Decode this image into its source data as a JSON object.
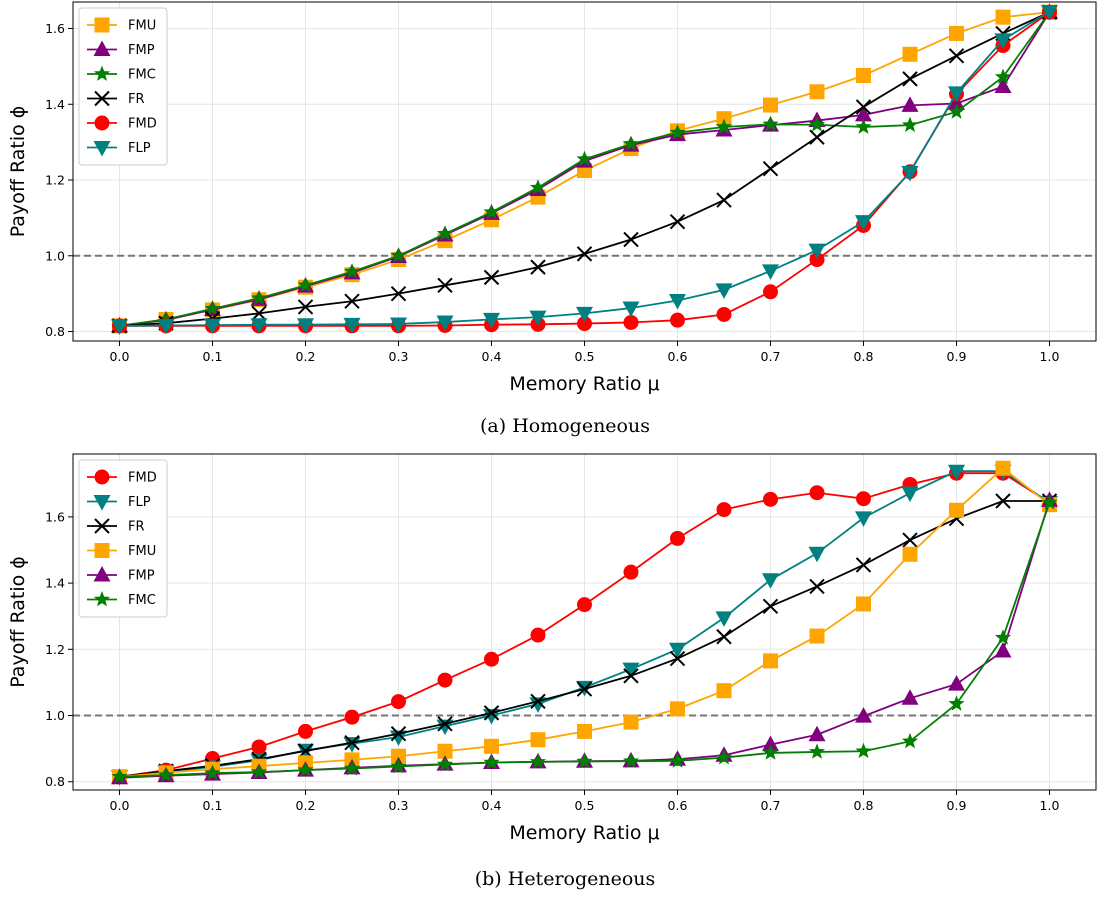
{
  "figure": {
    "captions": [
      "(a) Homogeneous",
      "(b) Heterogeneous"
    ]
  },
  "styles": {
    "FMU": {
      "color": "#FFA500",
      "marker": "square"
    },
    "FMP": {
      "color": "#800080",
      "marker": "triangle-up"
    },
    "FMC": {
      "color": "#008000",
      "marker": "star"
    },
    "FR": {
      "color": "#000000",
      "marker": "x"
    },
    "FMD": {
      "color": "#FF0000",
      "marker": "circle"
    },
    "FLP": {
      "color": "#008080",
      "marker": "triangle-down"
    }
  },
  "chart_data": [
    {
      "type": "line",
      "caption": "(a) Homogeneous",
      "xlabel": "Memory Ratio μ",
      "ylabel": "Payoff Ratio ϕ",
      "xlim": [
        -0.05,
        1.05
      ],
      "ylim": [
        0.775,
        1.67
      ],
      "xticks": [
        "0.0",
        "0.1",
        "0.2",
        "0.3",
        "0.4",
        "0.5",
        "0.6",
        "0.7",
        "0.8",
        "0.9",
        "1.0"
      ],
      "yticks": [
        "0.8",
        "1.0",
        "1.2",
        "1.4",
        "1.6"
      ],
      "grid": true,
      "reference_line_y": 1.0,
      "legend_position": "upper-left",
      "x": [
        0.0,
        0.05,
        0.1,
        0.15,
        0.2,
        0.25,
        0.3,
        0.35,
        0.4,
        0.45,
        0.5,
        0.55,
        0.6,
        0.65,
        0.7,
        0.75,
        0.8,
        0.85,
        0.9,
        0.95,
        1.0
      ],
      "series": [
        {
          "name": "FMU",
          "values": [
            0.815,
            0.832,
            0.857,
            0.884,
            0.917,
            0.95,
            0.99,
            1.04,
            1.095,
            1.155,
            1.225,
            1.283,
            1.33,
            1.362,
            1.398,
            1.433,
            1.476,
            1.532,
            1.587,
            1.63,
            1.643
          ]
        },
        {
          "name": "FMP",
          "values": [
            0.815,
            0.83,
            0.858,
            0.885,
            0.92,
            0.955,
            0.998,
            1.055,
            1.112,
            1.175,
            1.25,
            1.292,
            1.32,
            1.332,
            1.345,
            1.357,
            1.372,
            1.397,
            1.402,
            1.447,
            1.643
          ]
        },
        {
          "name": "FMC",
          "values": [
            0.815,
            0.832,
            0.86,
            0.888,
            0.922,
            0.958,
            1.0,
            1.058,
            1.115,
            1.18,
            1.255,
            1.295,
            1.325,
            1.34,
            1.347,
            1.346,
            1.34,
            1.345,
            1.38,
            1.472,
            1.643
          ]
        },
        {
          "name": "FR",
          "values": [
            0.815,
            0.822,
            0.834,
            0.848,
            0.865,
            0.88,
            0.9,
            0.922,
            0.943,
            0.97,
            1.005,
            1.043,
            1.09,
            1.147,
            1.23,
            1.313,
            1.393,
            1.467,
            1.528,
            1.587,
            1.643
          ]
        },
        {
          "name": "FMD",
          "values": [
            0.815,
            0.815,
            0.815,
            0.815,
            0.815,
            0.815,
            0.815,
            0.816,
            0.818,
            0.819,
            0.821,
            0.824,
            0.83,
            0.845,
            0.905,
            0.99,
            1.08,
            1.222,
            1.427,
            1.555,
            1.643
          ]
        },
        {
          "name": "FLP",
          "values": [
            0.815,
            0.816,
            0.817,
            0.818,
            0.818,
            0.819,
            0.82,
            0.825,
            0.832,
            0.838,
            0.848,
            0.862,
            0.882,
            0.91,
            0.96,
            1.015,
            1.09,
            1.22,
            1.43,
            1.57,
            1.645
          ]
        }
      ]
    },
    {
      "type": "line",
      "caption": "(b) Heterogeneous",
      "xlabel": "Memory Ratio μ",
      "ylabel": "Payoff Ratio ϕ",
      "xlim": [
        -0.05,
        1.05
      ],
      "ylim": [
        0.775,
        1.79
      ],
      "xticks": [
        "0.0",
        "0.1",
        "0.2",
        "0.3",
        "0.4",
        "0.5",
        "0.6",
        "0.7",
        "0.8",
        "0.9",
        "1.0"
      ],
      "yticks": [
        "0.8",
        "1.0",
        "1.2",
        "1.4",
        "1.6"
      ],
      "grid": true,
      "reference_line_y": 1.0,
      "legend_position": "upper-left",
      "x": [
        0.0,
        0.05,
        0.1,
        0.15,
        0.2,
        0.25,
        0.3,
        0.35,
        0.4,
        0.45,
        0.5,
        0.55,
        0.6,
        0.65,
        0.7,
        0.75,
        0.8,
        0.85,
        0.9,
        0.95,
        1.0
      ],
      "series": [
        {
          "name": "FMD",
          "values": [
            0.815,
            0.835,
            0.87,
            0.905,
            0.952,
            0.995,
            1.042,
            1.107,
            1.17,
            1.243,
            1.335,
            1.433,
            1.535,
            1.622,
            1.653,
            1.673,
            1.655,
            1.698,
            1.732,
            1.732,
            1.643
          ]
        },
        {
          "name": "FLP",
          "values": [
            0.815,
            0.83,
            0.845,
            0.865,
            0.895,
            0.915,
            0.935,
            0.968,
            1.0,
            1.035,
            1.085,
            1.14,
            1.2,
            1.295,
            1.41,
            1.49,
            1.597,
            1.672,
            1.738,
            1.738,
            1.643
          ]
        },
        {
          "name": "FR",
          "values": [
            0.815,
            0.832,
            0.848,
            0.868,
            0.893,
            0.918,
            0.945,
            0.975,
            1.008,
            1.043,
            1.08,
            1.12,
            1.172,
            1.238,
            1.33,
            1.39,
            1.455,
            1.53,
            1.595,
            1.648,
            1.648
          ]
        },
        {
          "name": "FMU",
          "values": [
            0.815,
            0.827,
            0.838,
            0.847,
            0.857,
            0.866,
            0.877,
            0.892,
            0.907,
            0.927,
            0.952,
            0.98,
            1.02,
            1.075,
            1.165,
            1.24,
            1.337,
            1.487,
            1.62,
            1.747,
            1.637
          ]
        },
        {
          "name": "FMP",
          "values": [
            0.812,
            0.818,
            0.823,
            0.828,
            0.835,
            0.842,
            0.848,
            0.853,
            0.858,
            0.86,
            0.862,
            0.863,
            0.868,
            0.88,
            0.912,
            0.942,
            0.998,
            1.052,
            1.095,
            1.195,
            1.65
          ]
        },
        {
          "name": "FMC",
          "values": [
            0.815,
            0.82,
            0.826,
            0.829,
            0.835,
            0.84,
            0.846,
            0.852,
            0.858,
            0.86,
            0.861,
            0.862,
            0.863,
            0.873,
            0.887,
            0.89,
            0.892,
            0.922,
            1.035,
            1.235,
            1.643
          ]
        }
      ]
    }
  ]
}
